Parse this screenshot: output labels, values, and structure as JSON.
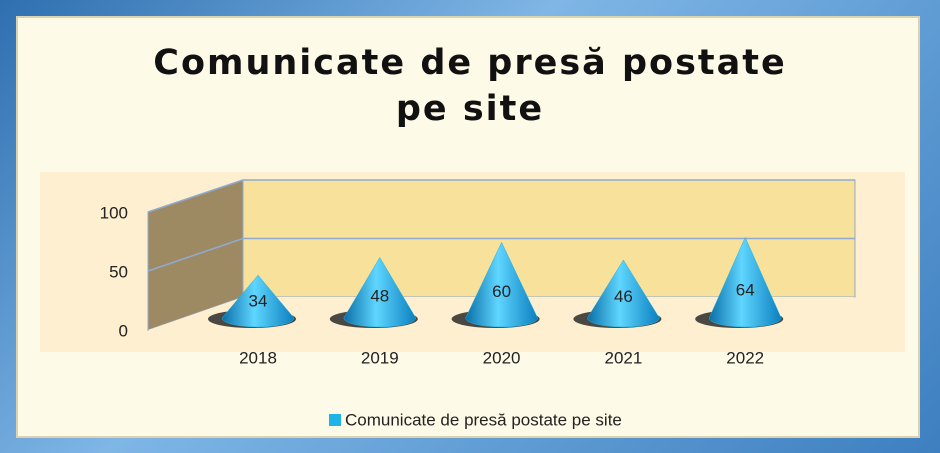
{
  "chart_data": {
    "type": "cone",
    "title": "Comunicate de presă postate pe site",
    "categories": [
      "2018",
      "2019",
      "2020",
      "2021",
      "2022"
    ],
    "series": [
      {
        "name": "Comunicate de presă postate pe site",
        "color": "#1fb4e8",
        "values": [
          34,
          48,
          60,
          46,
          64
        ]
      }
    ],
    "ylim": [
      0,
      100
    ],
    "yticks": [
      0,
      50,
      100
    ],
    "grid": true
  }
}
